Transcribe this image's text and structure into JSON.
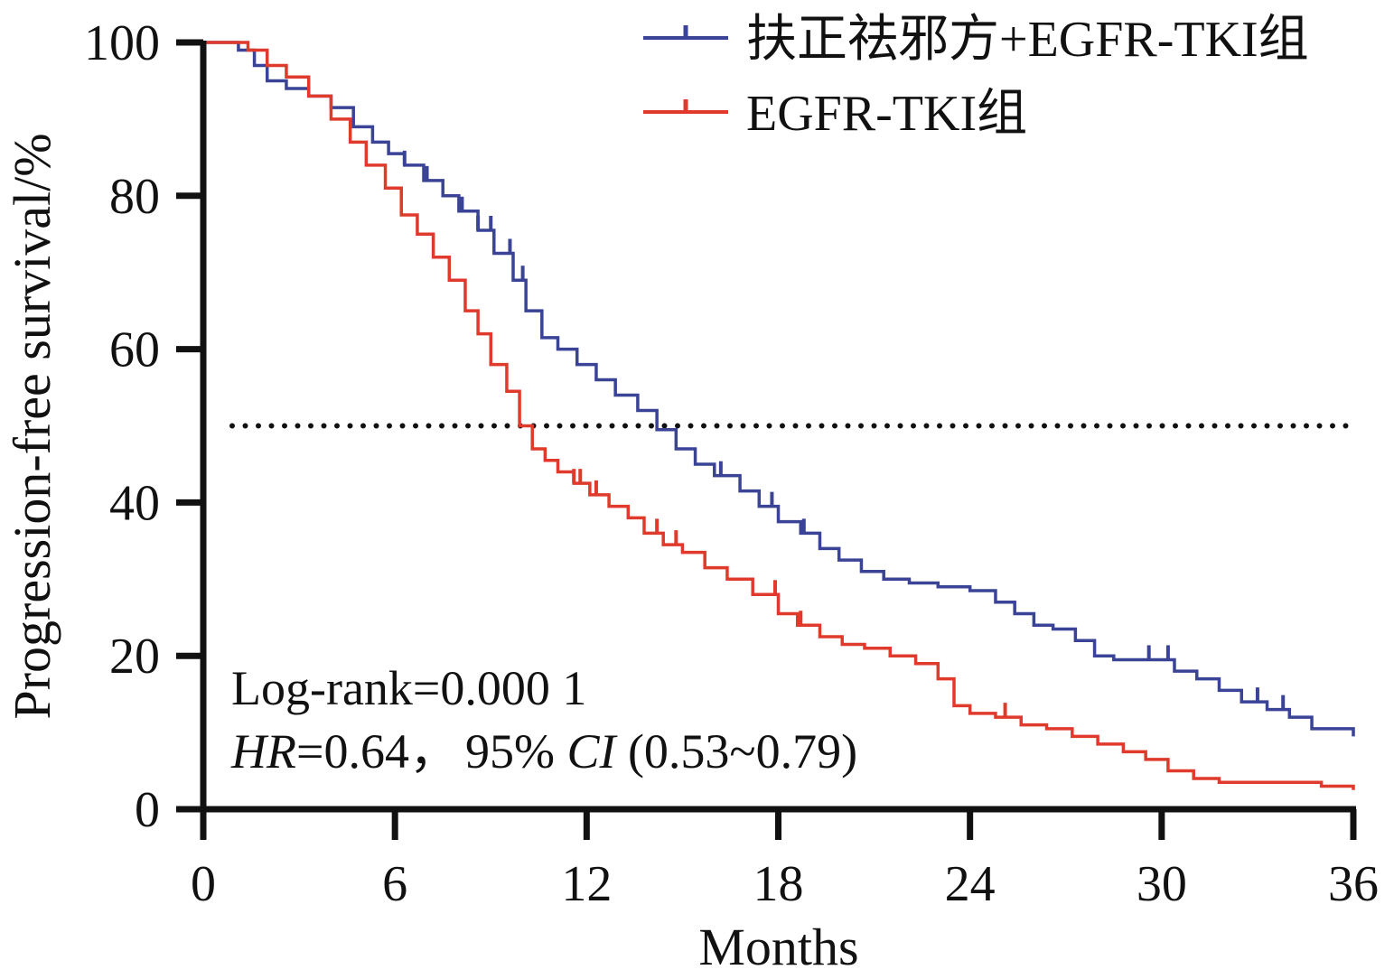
{
  "chart_data": {
    "type": "line",
    "step": true,
    "title": "",
    "xlabel": "Months",
    "ylabel": "Progression-free survival/%",
    "xlim": [
      0,
      36
    ],
    "ylim": [
      0,
      100
    ],
    "x_ticks": [
      "0",
      "6",
      "12",
      "18",
      "24",
      "30",
      "36"
    ],
    "y_ticks": [
      "0",
      "20",
      "40",
      "60",
      "80",
      "100"
    ],
    "reference_line": {
      "y": 50,
      "style": "dotted",
      "color": "#111111"
    },
    "legend_position": "top-right",
    "series": [
      {
        "name": "扶正祛邪方+EGFR-TKI组",
        "color": "#3a4396",
        "x": [
          0,
          1.1,
          1.6,
          2.0,
          2.6,
          3.3,
          4.0,
          4.7,
          5.3,
          5.8,
          6.3,
          6.9,
          7.5,
          8.0,
          8.6,
          9.1,
          9.7,
          10.1,
          10.6,
          11.1,
          11.7,
          12.3,
          12.9,
          13.6,
          14.2,
          14.8,
          15.4,
          16.0,
          16.8,
          17.4,
          18.0,
          18.7,
          19.3,
          19.9,
          20.6,
          21.3,
          22.1,
          23.0,
          24.0,
          24.8,
          25.4,
          26.0,
          26.6,
          27.3,
          27.9,
          28.5,
          29.4,
          30.4,
          31.1,
          31.8,
          32.5,
          33.3,
          34.0,
          34.7,
          36.0
        ],
        "y": [
          100,
          99,
          97,
          95,
          94,
          93,
          91.5,
          89,
          87,
          85.5,
          84,
          82,
          80,
          78,
          75.5,
          72.5,
          69,
          65,
          61.5,
          60,
          58,
          56,
          54,
          52,
          49.5,
          47,
          45,
          43.5,
          41.5,
          39.5,
          37.5,
          36,
          34,
          32.5,
          31,
          30,
          29.5,
          29,
          28.5,
          27,
          25.5,
          24,
          23.5,
          22,
          20,
          19.5,
          19.5,
          18,
          17,
          15.5,
          14,
          13,
          12,
          10.5,
          9.5
        ],
        "censor_x": [
          6.3,
          7.0,
          8.1,
          8.6,
          9.0,
          9.6,
          10.0,
          16.2,
          17.8,
          18.8,
          29.6,
          30.2,
          33.0,
          33.8
        ]
      },
      {
        "name": "EGFR-TKI组",
        "color": "#e03a2c",
        "x": [
          0,
          1.4,
          2.0,
          2.6,
          3.3,
          4.0,
          4.6,
          5.1,
          5.7,
          6.2,
          6.7,
          7.2,
          7.7,
          8.2,
          8.6,
          9.0,
          9.5,
          9.9,
          10.3,
          10.7,
          11.1,
          11.6,
          12.1,
          12.7,
          13.3,
          13.8,
          14.4,
          15.0,
          15.7,
          16.4,
          17.2,
          18.0,
          18.6,
          19.3,
          20.0,
          20.7,
          21.5,
          22.3,
          23.0,
          23.5,
          24.0,
          24.8,
          25.6,
          26.4,
          27.2,
          28.0,
          28.8,
          29.5,
          30.2,
          31.0,
          31.8,
          35.0,
          36.0
        ],
        "y": [
          100,
          99,
          97,
          95.5,
          93,
          90,
          87,
          84,
          81,
          77.5,
          75,
          72,
          69,
          65,
          62,
          58,
          54.5,
          50,
          47,
          45.5,
          44,
          42.5,
          41,
          39.5,
          38,
          36,
          34.5,
          33.5,
          31.5,
          30,
          28,
          25.5,
          24,
          22.5,
          21.5,
          21,
          20,
          19,
          17,
          13.5,
          12.5,
          12,
          11,
          10.5,
          9.5,
          8.5,
          7.5,
          6.5,
          5,
          4,
          3.5,
          3,
          2.5
        ],
        "censor_x": [
          11.6,
          11.8,
          12.3,
          14.2,
          14.8,
          17.9,
          18.7,
          25.1
        ]
      }
    ],
    "annotations": {
      "line1": "Log-rank=0.000 1",
      "line2_hr_label": "HR",
      "line2_hr_value": "=0.64，",
      "line2_ci_prefix": "95% ",
      "line2_ci_label": "CI",
      "line2_ci_value": " (0.53~0.79)"
    }
  }
}
